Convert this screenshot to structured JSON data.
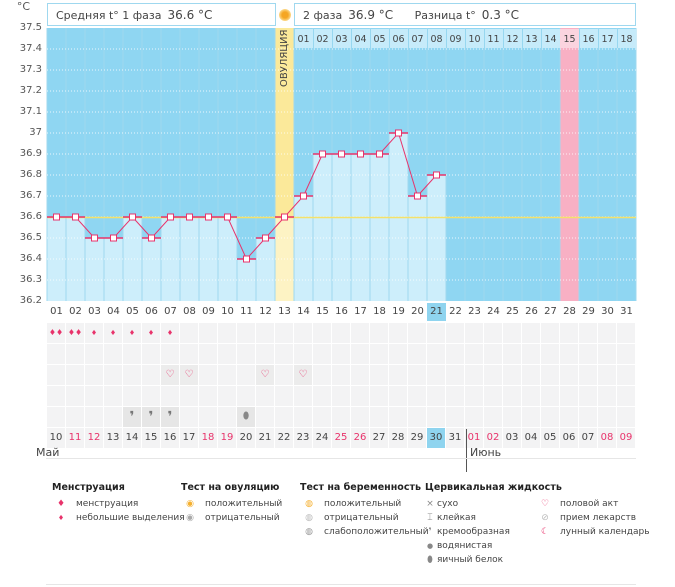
{
  "unit": "°C",
  "header": {
    "phase1_label": "Средняя t° 1 фаза",
    "phase1_value": "36.6 °C",
    "phase2_label": "2 фаза",
    "phase2_value": "36.9 °C",
    "diff_label": "Разница t°",
    "diff_value": "0.3 °C"
  },
  "ovulation_label": "ОВУЛЯЦИЯ",
  "y_ticks": [
    "37.5",
    "37.4",
    "37.3",
    "37.2",
    "37.1",
    "37",
    "36.9",
    "36.8",
    "36.7",
    "36.6",
    "36.5",
    "36.4",
    "36.3",
    "36.2"
  ],
  "cover_line": 36.6,
  "ovulation_day": 13,
  "pink_day": 28,
  "current_day": 21,
  "temps": [
    36.6,
    36.6,
    36.5,
    36.5,
    36.6,
    36.5,
    36.6,
    36.6,
    36.6,
    36.6,
    36.4,
    36.5,
    36.6,
    36.7,
    36.9,
    36.9,
    36.9,
    36.9,
    37.0,
    36.7,
    36.8
  ],
  "luteal_days": [
    "01",
    "02",
    "03",
    "04",
    "05",
    "06",
    "07",
    "08",
    "09",
    "10",
    "11",
    "12",
    "13",
    "14",
    "15",
    "16",
    "17",
    "18"
  ],
  "cycle_days": [
    "01",
    "02",
    "03",
    "04",
    "05",
    "06",
    "07",
    "08",
    "09",
    "10",
    "11",
    "12",
    "13",
    "14",
    "15",
    "16",
    "17",
    "18",
    "19",
    "20",
    "21",
    "22",
    "23",
    "24",
    "25",
    "26",
    "27",
    "28",
    "29",
    "30",
    "31"
  ],
  "dates": [
    "10",
    "11",
    "12",
    "13",
    "14",
    "15",
    "16",
    "17",
    "18",
    "19",
    "20",
    "21",
    "22",
    "23",
    "24",
    "25",
    "26",
    "27",
    "28",
    "29",
    "30",
    "31",
    "01",
    "02",
    "03",
    "04",
    "05",
    "06",
    "07",
    "08",
    "09"
  ],
  "weekend_idx": [
    1,
    2,
    8,
    9,
    15,
    16,
    22,
    23,
    29,
    30
  ],
  "today_date_idx": 20,
  "months": {
    "first": "Май",
    "second": "Июнь"
  },
  "markers": {
    "menstruation_heavy": [
      1,
      2
    ],
    "menstruation_light": [
      3,
      4,
      5,
      6,
      7
    ],
    "intercourse": [
      7,
      8,
      12,
      14
    ],
    "creamy": [
      5,
      6,
      7
    ],
    "egg_white": [
      11
    ]
  },
  "colors": {
    "sky": "#8fd6f2",
    "bar": "#cdeefb",
    "line": "#e8336b",
    "ovulation": "#fbe99a",
    "pink": "#f8b0c4",
    "cover": "#f5e16a"
  },
  "legend": {
    "menstruation": {
      "title": "Менструация",
      "items": [
        "менструация",
        "небольшие выделения"
      ]
    },
    "ovulation_test": {
      "title": "Тест на овуляцию",
      "items": [
        "положительный",
        "отрицательный"
      ]
    },
    "pregnancy_test": {
      "title": "Тест на беременность",
      "items": [
        "положительный",
        "отрицательный",
        "слабоположительный"
      ]
    },
    "cervical": {
      "title": "Цервикальная жидкость",
      "items": [
        "сухо",
        "клейкая",
        "кремообразная",
        "водянистая",
        "яичный белок"
      ]
    },
    "other": {
      "items": [
        "половой акт",
        "прием лекарств",
        "лунный календарь"
      ]
    }
  }
}
